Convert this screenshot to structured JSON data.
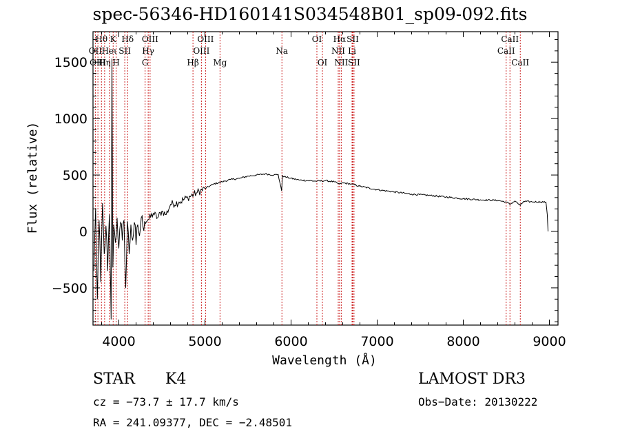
{
  "chart_data": {
    "type": "line",
    "title": "spec-56346-HD160141S034548B01_sp09-092.fits",
    "xlabel": "Wavelength (Å)",
    "ylabel": "Flux (relative)",
    "xlim": [
      3700,
      9100
    ],
    "ylim": [
      -830,
      1770
    ],
    "xticks": [
      4000,
      5000,
      6000,
      7000,
      8000,
      9000
    ],
    "yticks": [
      -500,
      0,
      500,
      1000,
      1500
    ],
    "series": [
      {
        "name": "flux",
        "x": [
          3710,
          3730,
          3750,
          3770,
          3790,
          3810,
          3830,
          3850,
          3870,
          3890,
          3900,
          3910,
          3920,
          3930,
          3940,
          3960,
          3980,
          4000,
          4020,
          4040,
          4060,
          4080,
          4100,
          4120,
          4140,
          4160,
          4180,
          4200,
          4220,
          4240,
          4260,
          4280,
          4300,
          4350,
          4400,
          4450,
          4500,
          4550,
          4600,
          4700,
          4800,
          4900,
          5000,
          5100,
          5200,
          5300,
          5400,
          5500,
          5600,
          5700,
          5800,
          5850,
          5890,
          5900,
          5920,
          5950,
          6000,
          6100,
          6200,
          6300,
          6400,
          6500,
          6560,
          6600,
          6700,
          6800,
          7000,
          7200,
          7400,
          7600,
          7800,
          8000,
          8200,
          8400,
          8500,
          8540,
          8600,
          8662,
          8700,
          8800,
          8900,
          8960,
          8975,
          8985
        ],
        "y": [
          -350,
          200,
          -600,
          100,
          -450,
          250,
          -200,
          50,
          -350,
          150,
          -300,
          -780,
          1530,
          -320,
          60,
          -100,
          120,
          -150,
          80,
          -80,
          100,
          -500,
          90,
          -200,
          60,
          -80,
          80,
          -120,
          60,
          -40,
          120,
          40,
          90,
          110,
          160,
          120,
          180,
          150,
          240,
          260,
          300,
          340,
          380,
          420,
          440,
          460,
          470,
          490,
          500,
          510,
          500,
          505,
          360,
          495,
          485,
          480,
          470,
          455,
          450,
          445,
          450,
          440,
          420,
          430,
          420,
          400,
          370,
          350,
          330,
          320,
          305,
          290,
          280,
          275,
          260,
          240,
          270,
          230,
          265,
          262,
          262,
          260,
          150,
          0
        ]
      }
    ],
    "lines": [
      {
        "name": "Hθ",
        "wave": 3798,
        "row": 1
      },
      {
        "name": "OII",
        "wave": 3727,
        "row": 2
      },
      {
        "name": "OIII",
        "wave": 3757,
        "row": 3
      },
      {
        "name": "Hη",
        "wave": 3835,
        "row": 3
      },
      {
        "name": "Heι",
        "wave": 3889,
        "row": 2
      },
      {
        "name": "K",
        "wave": 3934,
        "row": 1
      },
      {
        "name": "H",
        "wave": 3969,
        "row": 3
      },
      {
        "name": "SII",
        "wave": 4069,
        "row": 2
      },
      {
        "name": "Hδ",
        "wave": 4102,
        "row": 1
      },
      {
        "name": "G",
        "wave": 4305,
        "row": 3
      },
      {
        "name": "Hγ",
        "wave": 4341,
        "row": 2
      },
      {
        "name": "OIII",
        "wave": 4363,
        "row": 1
      },
      {
        "name": "Hβ",
        "wave": 4861,
        "row": 3
      },
      {
        "name": "OIII",
        "wave": 4959,
        "row": 2
      },
      {
        "name": "OIII",
        "wave": 5007,
        "row": 1
      },
      {
        "name": "Mg",
        "wave": 5175,
        "row": 3
      },
      {
        "name": "Na",
        "wave": 5894,
        "row": 2
      },
      {
        "name": "OI",
        "wave": 6300,
        "row": 1
      },
      {
        "name": "OI",
        "wave": 6364,
        "row": 3
      },
      {
        "name": "NII",
        "wave": 6548,
        "row": 2
      },
      {
        "name": "Hα",
        "wave": 6563,
        "row": 1
      },
      {
        "name": "NII",
        "wave": 6583,
        "row": 3
      },
      {
        "name": "Li",
        "wave": 6708,
        "row": 2
      },
      {
        "name": "SII",
        "wave": 6716,
        "row": 1
      },
      {
        "name": "SII",
        "wave": 6731,
        "row": 3
      },
      {
        "name": "CaII",
        "wave": 8498,
        "row": 2
      },
      {
        "name": "CaII",
        "wave": 8542,
        "row": 1
      },
      {
        "name": "CaII",
        "wave": 8662,
        "row": 3
      }
    ]
  },
  "info": {
    "object_type": "STAR",
    "subclass": "K4",
    "survey": "LAMOST DR3",
    "cz": "cz = −73.7 ± 17.7 km/s",
    "obs_date": "Obs−Date: 20130222",
    "coords": "RA = 241.09377, DEC =  −2.48501"
  }
}
